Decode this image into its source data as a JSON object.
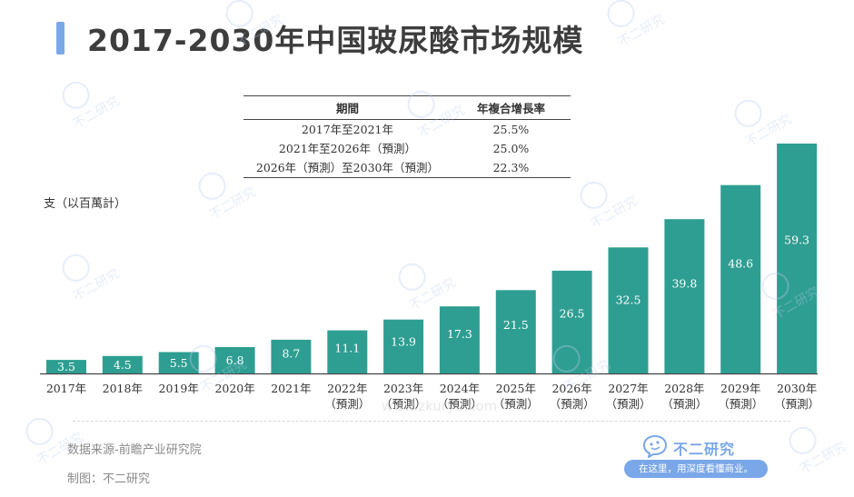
{
  "page": {
    "title": "2017-2030年中国玻尿酸市场规模",
    "unit_label": "支（以百萬計）",
    "source": "数据来源-前瞻产业研究院",
    "made_by": "制图：不二研究",
    "watermark_text": "不二研究",
    "url_watermark": "www.zkuryu.com",
    "brand": {
      "name": "不二研究",
      "tagline": "在这里，用深度看懂商业。"
    }
  },
  "cagr_table": {
    "headers": [
      "期間",
      "年複合增長率"
    ],
    "rows": [
      {
        "period": "2017年至2021年",
        "rate": "25.5%"
      },
      {
        "period": "2021年至2026年（預測）",
        "rate": "25.0%"
      },
      {
        "period": "2026年（預測）至2030年（預測）",
        "rate": "22.3%"
      }
    ]
  },
  "chart_data": {
    "type": "bar",
    "title": "2017-2030年中国玻尿酸市场规模",
    "ylabel": "支（以百萬計）",
    "categories": [
      "2017年",
      "2018年",
      "2019年",
      "2020年",
      "2021年",
      "2022年",
      "2023年",
      "2024年",
      "2025年",
      "2026年",
      "2027年",
      "2028年",
      "2029年",
      "2030年"
    ],
    "category_notes": [
      "",
      "",
      "",
      "",
      "",
      "（預測）",
      "（預測）",
      "（預測）",
      "（預測）",
      "（預測）",
      "（預測）",
      "（預測）",
      "（預測）",
      "（預測）"
    ],
    "values": [
      3.5,
      4.5,
      5.5,
      6.8,
      8.7,
      11.1,
      13.9,
      17.3,
      21.5,
      26.5,
      32.5,
      39.8,
      48.6,
      59.3
    ],
    "value_labels": [
      "3.5",
      "4.5",
      "5.5",
      "6.8",
      "8.7",
      "11.1",
      "13.9",
      "17.3",
      "21.5",
      "26.5",
      "32.5",
      "39.8",
      "48.6",
      "59.3"
    ],
    "ylim": [
      0,
      59.3
    ],
    "bar_color": "#2f9e92",
    "grid": false,
    "legend": "none"
  }
}
